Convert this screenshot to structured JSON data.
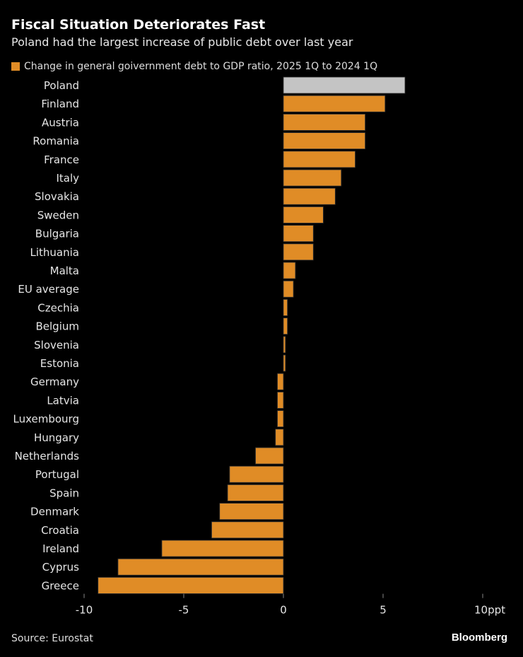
{
  "header": {
    "title": "Fiscal Situation Deteriorates Fast",
    "subtitle": "Poland had the largest increase of public debt over last year"
  },
  "footer": {
    "source": "Source: Eurostat",
    "brand": "Bloomberg"
  },
  "chart_data": {
    "type": "bar",
    "orientation": "horizontal",
    "title": "Fiscal Situation Deteriorates Fast",
    "legend": [
      "Change in general goivernment debt to GDP ratio, 2025 1Q to 2024 1Q"
    ],
    "legend_placement": "top-left",
    "categories": [
      "Poland",
      "Finland",
      "Austria",
      "Romania",
      "France",
      "Italy",
      "Slovakia",
      "Sweden",
      "Bulgaria",
      "Lithuania",
      "Malta",
      "EU average",
      "Czechia",
      "Belgium",
      "Slovenia",
      "Estonia",
      "Germany",
      "Latvia",
      "Luxembourg",
      "Hungary",
      "Netherlands",
      "Portugal",
      "Spain",
      "Denmark",
      "Croatia",
      "Ireland",
      "Cyprus",
      "Greece"
    ],
    "values": [
      6.1,
      5.1,
      4.1,
      4.1,
      3.6,
      2.9,
      2.6,
      2.0,
      1.5,
      1.5,
      0.6,
      0.5,
      0.2,
      0.2,
      0.1,
      0.1,
      -0.3,
      -0.3,
      -0.3,
      -0.4,
      -1.4,
      -2.7,
      -2.8,
      -3.2,
      -3.6,
      -6.1,
      -8.3,
      -9.3
    ],
    "highlight": "Poland",
    "xlim": [
      -10,
      10
    ],
    "xticks": [
      -10,
      -5,
      0,
      5,
      10
    ],
    "xtick_labels": [
      "-10",
      "-5",
      "0",
      "5",
      "10ppt"
    ],
    "colors": {
      "bar": "#e08c26",
      "highlight": "#c4c4c4",
      "background": "#000000"
    },
    "grid": false
  }
}
